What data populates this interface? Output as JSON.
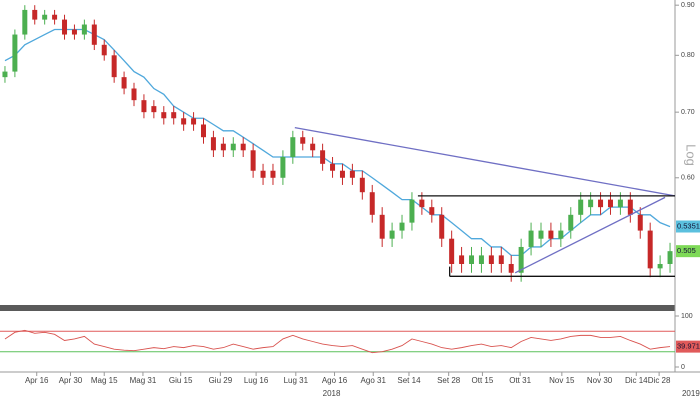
{
  "chart_data": [
    {
      "type": "candlestick",
      "log_scale": true,
      "scale_label": "Log",
      "grid": false,
      "up_color": "#4caf50",
      "down_color": "#c62828",
      "xlim": [
        0,
        68
      ],
      "xticks": [
        {
          "value": 3.7,
          "label": "Apr 16"
        },
        {
          "value": 7.1,
          "label": "Apr 30"
        },
        {
          "value": 10.5,
          "label": "Mag 15"
        },
        {
          "value": 14.4,
          "label": "Mag 31"
        },
        {
          "value": 18.2,
          "label": "Giu 15"
        },
        {
          "value": 22.2,
          "label": "Giu 29"
        },
        {
          "value": 25.8,
          "label": "Lug 16"
        },
        {
          "value": 29.8,
          "label": "Lug 31"
        },
        {
          "value": 33.7,
          "label": "Ago 16"
        },
        {
          "value": 37.6,
          "label": "Ago 31"
        },
        {
          "value": 41.2,
          "label": "Set 14"
        },
        {
          "value": 45.2,
          "label": "Set 28"
        },
        {
          "value": 48.6,
          "label": "Ott 15"
        },
        {
          "value": 52.4,
          "label": "Ott 31"
        },
        {
          "value": 56.6,
          "label": "Nov 15"
        },
        {
          "value": 60.4,
          "label": "Nov 30"
        },
        {
          "value": 64.1,
          "label": "Dic 14"
        },
        {
          "value": 66.4,
          "label": "Dic 28"
        }
      ],
      "year_ticks": [
        {
          "value": 33.4,
          "label": "2018"
        },
        {
          "value": 69.6,
          "label": "2019"
        }
      ],
      "ylim": [
        0.445,
        0.911
      ],
      "yticks": [
        {
          "value": 0.9,
          "label": "0.90"
        },
        {
          "value": 0.8,
          "label": "0.80"
        },
        {
          "value": 0.7,
          "label": "0.70"
        },
        {
          "value": 0.6,
          "label": "0.60"
        }
      ],
      "open": [
        0.76,
        0.77,
        0.84,
        0.89,
        0.87,
        0.88,
        0.87,
        0.85,
        0.84,
        0.86,
        0.82,
        0.8,
        0.76,
        0.74,
        0.72,
        0.71,
        0.7,
        0.7,
        0.69,
        0.69,
        0.68,
        0.66,
        0.65,
        0.64,
        0.65,
        0.64,
        0.61,
        0.61,
        0.6,
        0.63,
        0.66,
        0.65,
        0.64,
        0.62,
        0.61,
        0.61,
        0.6,
        0.58,
        0.55,
        0.52,
        0.53,
        0.54,
        0.57,
        0.56,
        0.55,
        0.52,
        0.5,
        0.49,
        0.49,
        0.5,
        0.5,
        0.49,
        0.48,
        0.51,
        0.52,
        0.53,
        0.52,
        0.53,
        0.55,
        0.56,
        0.57,
        0.57,
        0.56,
        0.57,
        0.55,
        0.53,
        0.485,
        0.49
      ],
      "high": [
        0.78,
        0.85,
        0.9,
        0.9,
        0.89,
        0.89,
        0.88,
        0.86,
        0.87,
        0.87,
        0.83,
        0.81,
        0.77,
        0.75,
        0.73,
        0.72,
        0.71,
        0.71,
        0.7,
        0.7,
        0.69,
        0.67,
        0.66,
        0.66,
        0.66,
        0.65,
        0.62,
        0.62,
        0.64,
        0.67,
        0.67,
        0.66,
        0.65,
        0.63,
        0.62,
        0.62,
        0.61,
        0.59,
        0.56,
        0.54,
        0.55,
        0.58,
        0.58,
        0.57,
        0.56,
        0.53,
        0.51,
        0.51,
        0.51,
        0.51,
        0.51,
        0.5,
        0.52,
        0.54,
        0.54,
        0.54,
        0.54,
        0.56,
        0.58,
        0.58,
        0.58,
        0.58,
        0.58,
        0.58,
        0.56,
        0.54,
        0.5,
        0.515
      ],
      "low": [
        0.75,
        0.76,
        0.83,
        0.86,
        0.86,
        0.86,
        0.83,
        0.83,
        0.83,
        0.81,
        0.79,
        0.75,
        0.73,
        0.71,
        0.69,
        0.69,
        0.68,
        0.68,
        0.67,
        0.67,
        0.65,
        0.63,
        0.63,
        0.63,
        0.63,
        0.6,
        0.59,
        0.59,
        0.59,
        0.62,
        0.64,
        0.63,
        0.61,
        0.6,
        0.59,
        0.59,
        0.57,
        0.54,
        0.51,
        0.51,
        0.52,
        0.53,
        0.55,
        0.54,
        0.51,
        0.48,
        0.48,
        0.48,
        0.48,
        0.48,
        0.48,
        0.47,
        0.47,
        0.5,
        0.51,
        0.51,
        0.51,
        0.52,
        0.54,
        0.55,
        0.55,
        0.55,
        0.55,
        0.54,
        0.52,
        0.475,
        0.475,
        0.48
      ],
      "close": [
        0.77,
        0.84,
        0.89,
        0.87,
        0.88,
        0.87,
        0.84,
        0.84,
        0.86,
        0.82,
        0.8,
        0.76,
        0.74,
        0.72,
        0.7,
        0.7,
        0.69,
        0.69,
        0.68,
        0.68,
        0.66,
        0.64,
        0.64,
        0.65,
        0.64,
        0.61,
        0.6,
        0.6,
        0.63,
        0.66,
        0.65,
        0.64,
        0.62,
        0.61,
        0.6,
        0.6,
        0.58,
        0.55,
        0.52,
        0.53,
        0.54,
        0.57,
        0.56,
        0.55,
        0.52,
        0.49,
        0.49,
        0.5,
        0.5,
        0.49,
        0.49,
        0.48,
        0.51,
        0.53,
        0.53,
        0.52,
        0.53,
        0.55,
        0.57,
        0.57,
        0.56,
        0.56,
        0.57,
        0.55,
        0.53,
        0.485,
        0.49,
        0.505
      ],
      "series": [
        {
          "color": "#4fa8dc",
          "values": [
            0.79,
            0.8,
            0.82,
            0.83,
            0.84,
            0.85,
            0.85,
            0.85,
            0.85,
            0.84,
            0.83,
            0.81,
            0.79,
            0.77,
            0.76,
            0.74,
            0.73,
            0.71,
            0.7,
            0.69,
            0.69,
            0.68,
            0.67,
            0.67,
            0.66,
            0.65,
            0.64,
            0.63,
            0.63,
            0.63,
            0.63,
            0.63,
            0.63,
            0.62,
            0.62,
            0.61,
            0.61,
            0.6,
            0.59,
            0.58,
            0.57,
            0.57,
            0.56,
            0.55,
            0.55,
            0.54,
            0.53,
            0.52,
            0.52,
            0.51,
            0.51,
            0.5,
            0.5,
            0.51,
            0.51,
            0.52,
            0.52,
            0.53,
            0.54,
            0.55,
            0.55,
            0.56,
            0.56,
            0.56,
            0.55,
            0.55,
            0.54,
            0.535
          ]
        }
      ],
      "trend_lines": [
        {
          "color": "#6f6fc4",
          "x": [
            29.7,
            68
          ],
          "y": [
            0.675,
            0.575
          ]
        },
        {
          "color": "#6f6fc4",
          "x": [
            51.9,
            67
          ],
          "y": [
            0.48,
            0.573
          ]
        },
        {
          "color": "#111111",
          "x": [
            42.1,
            68
          ],
          "y": [
            0.575,
            0.575
          ]
        },
        {
          "color": "#111111",
          "x": [
            45.3,
            68
          ],
          "y": [
            0.476,
            0.476
          ]
        },
        {
          "color": "#111111",
          "x": [
            45.3,
            45.3
          ],
          "y": [
            0.476,
            0.487
          ]
        }
      ],
      "price_tags": [
        {
          "value": 0.5351,
          "color": "#5bc0de"
        },
        {
          "value": 0.505,
          "color": "#7ed957"
        }
      ]
    },
    {
      "type": "line",
      "ylim": [
        0,
        100
      ],
      "yticks": [
        100,
        0
      ],
      "levels": [
        {
          "value": 70,
          "color": "#e05a5a"
        },
        {
          "value": 30,
          "color": "#5cc15c"
        }
      ],
      "series": [
        {
          "color": "#d9534f",
          "values": [
            55,
            68,
            72,
            66,
            68,
            64,
            52,
            55,
            60,
            45,
            40,
            35,
            33,
            32,
            35,
            38,
            36,
            40,
            38,
            42,
            40,
            35,
            38,
            45,
            40,
            35,
            38,
            40,
            55,
            62,
            55,
            50,
            45,
            42,
            40,
            42,
            35,
            28,
            30,
            35,
            42,
            55,
            50,
            45,
            38,
            35,
            38,
            42,
            45,
            40,
            42,
            38,
            50,
            58,
            55,
            52,
            55,
            60,
            62,
            62,
            58,
            58,
            60,
            52,
            45,
            35,
            38,
            39.9718
          ]
        }
      ],
      "price_tags": [
        {
          "value": 39.9718,
          "color": "#e05a5a"
        }
      ]
    }
  ]
}
